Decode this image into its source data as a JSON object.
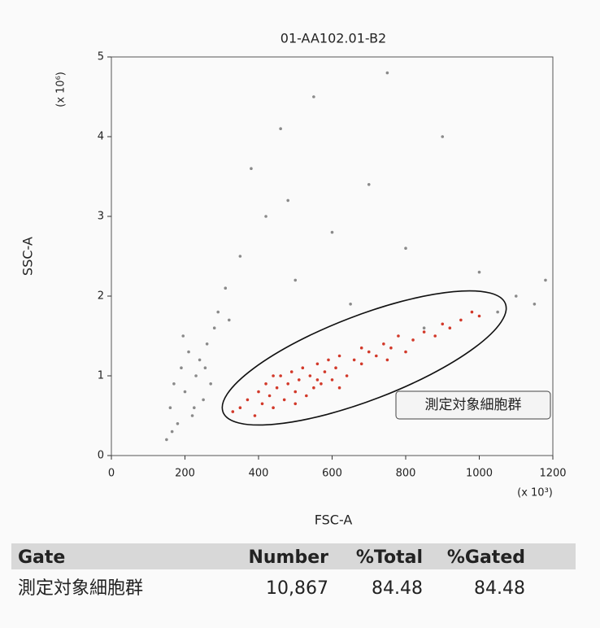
{
  "chart_data": {
    "type": "scatter",
    "title": "01-AA102.01-B2",
    "xlabel": "FSC-A",
    "ylabel": "SSC-A",
    "xunit": "(x 10³)",
    "yunit": "(x 10⁶)",
    "annotation": "測定対象細胞群",
    "xlim": [
      0,
      1200
    ],
    "xticks": [
      0,
      200,
      400,
      600,
      800,
      1000,
      1200
    ],
    "ylim": [
      0,
      5
    ],
    "yticks": [
      0,
      1,
      2,
      3,
      4,
      5
    ],
    "series": [
      {
        "color": "#8a8a8a",
        "x": [
          150,
          160,
          170,
          180,
          190,
          200,
          210,
          220,
          230,
          240,
          250,
          260,
          270,
          280,
          165,
          195,
          225,
          255,
          290,
          310,
          350,
          420,
          500,
          380,
          460,
          600,
          700,
          800,
          550,
          650,
          900,
          1000,
          1050,
          1100,
          1150,
          1180,
          320,
          750,
          480,
          850
        ],
        "values": [
          0.2,
          0.6,
          0.9,
          0.4,
          1.1,
          0.8,
          1.3,
          0.5,
          1.0,
          1.2,
          0.7,
          1.4,
          0.9,
          1.6,
          0.3,
          1.5,
          0.6,
          1.1,
          1.8,
          2.1,
          2.5,
          3.0,
          2.2,
          3.6,
          4.1,
          2.8,
          3.4,
          2.6,
          4.5,
          1.9,
          4.0,
          2.3,
          1.8,
          2.0,
          1.9,
          2.2,
          1.7,
          4.8,
          3.2,
          1.6
        ]
      },
      {
        "color": "#d2392a",
        "x": [
          330,
          350,
          370,
          390,
          400,
          410,
          420,
          430,
          440,
          450,
          460,
          470,
          480,
          490,
          500,
          510,
          520,
          530,
          540,
          550,
          560,
          570,
          580,
          590,
          600,
          610,
          620,
          640,
          660,
          680,
          700,
          720,
          740,
          760,
          780,
          800,
          820,
          850,
          880,
          900,
          920,
          950,
          980,
          1000,
          440,
          500,
          560,
          620,
          680,
          750
        ],
        "values": [
          0.55,
          0.6,
          0.7,
          0.5,
          0.8,
          0.65,
          0.9,
          0.75,
          0.6,
          0.85,
          1.0,
          0.7,
          0.9,
          1.05,
          0.8,
          0.95,
          1.1,
          0.75,
          1.0,
          0.85,
          1.15,
          0.9,
          1.05,
          1.2,
          0.95,
          1.1,
          1.25,
          1.0,
          1.2,
          1.15,
          1.3,
          1.25,
          1.4,
          1.35,
          1.5,
          1.3,
          1.45,
          1.55,
          1.5,
          1.65,
          1.6,
          1.7,
          1.8,
          1.75,
          1.0,
          0.65,
          0.95,
          0.85,
          1.35,
          1.2
        ]
      }
    ]
  },
  "table": {
    "header": [
      "Gate",
      "Number",
      "%Total",
      "%Gated"
    ],
    "rows": [
      [
        "測定対象細胞群",
        "10,867",
        "84.48",
        "84.48"
      ]
    ]
  }
}
